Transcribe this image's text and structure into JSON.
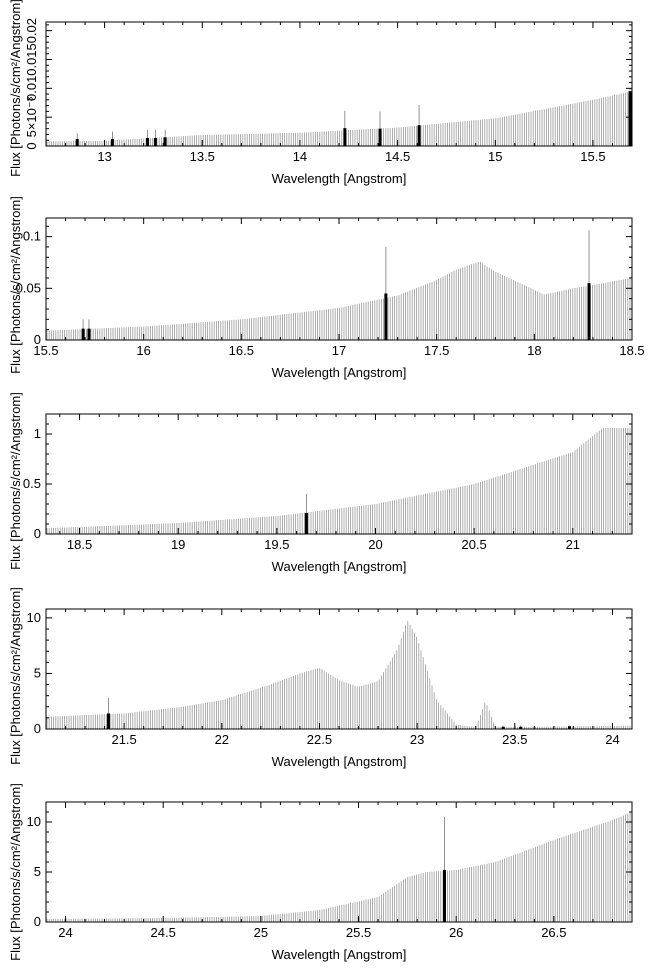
{
  "chart_data": [
    {
      "type": "bar",
      "xlabel": "Wavelength [Angstrom]",
      "ylabel": "Flux [Photons/s/cm²/Angstrom]",
      "xlim": [
        12.7,
        15.7
      ],
      "ylim": [
        0,
        0.0215
      ],
      "xticks": [
        13,
        13.5,
        14,
        14.5,
        15,
        15.5
      ],
      "xtick_labels": [
        "13",
        "13.5",
        "14",
        "14.5",
        "15",
        "15.5"
      ],
      "yticks": [
        0,
        0.005,
        0.01,
        0.015,
        0.02
      ],
      "ytick_labels": [
        "0",
        "5×10⁻³",
        "0.01",
        "0.015",
        "0.02"
      ],
      "curve": [
        [
          12.7,
          0.0008
        ],
        [
          13.0,
          0.0009
        ],
        [
          13.5,
          0.0019
        ],
        [
          14.0,
          0.0023
        ],
        [
          14.5,
          0.0032
        ],
        [
          15.0,
          0.0048
        ],
        [
          15.5,
          0.008
        ],
        [
          15.7,
          0.0095
        ]
      ],
      "highlights": [
        {
          "x": 12.86,
          "y": 0.0012,
          "err": 0.0022
        },
        {
          "x": 13.04,
          "y": 0.0012,
          "err": 0.0025
        },
        {
          "x": 13.22,
          "y": 0.0014,
          "err": 0.0028
        },
        {
          "x": 13.26,
          "y": 0.0014,
          "err": 0.0028
        },
        {
          "x": 13.31,
          "y": 0.0015,
          "err": 0.0028
        },
        {
          "x": 14.23,
          "y": 0.0031,
          "err": 0.0061
        },
        {
          "x": 14.41,
          "y": 0.003,
          "err": 0.006
        },
        {
          "x": 14.61,
          "y": 0.0036,
          "err": 0.0071
        },
        {
          "x": 15.69,
          "y": 0.0095,
          "err": 0.01
        }
      ]
    },
    {
      "type": "bar",
      "xlabel": "Wavelength [Angstrom]",
      "ylabel": "Flux [Photons/s/cm²/Angstrom]",
      "xlim": [
        15.5,
        18.5
      ],
      "ylim": [
        0,
        0.118
      ],
      "xticks": [
        15.5,
        16,
        16.5,
        17,
        17.5,
        18,
        18.5
      ],
      "xtick_labels": [
        "15.5",
        "16",
        "16.5",
        "17",
        "17.5",
        "18",
        "18.5"
      ],
      "yticks": [
        0,
        0.05,
        0.1
      ],
      "ytick_labels": [
        "0",
        "0.05",
        "0.1"
      ],
      "curve": [
        [
          15.5,
          0.009
        ],
        [
          16.0,
          0.013
        ],
        [
          16.5,
          0.02
        ],
        [
          17.0,
          0.031
        ],
        [
          17.3,
          0.043
        ],
        [
          17.5,
          0.058
        ],
        [
          17.6,
          0.068
        ],
        [
          17.72,
          0.076
        ],
        [
          17.8,
          0.066
        ],
        [
          17.95,
          0.053
        ],
        [
          18.05,
          0.044
        ],
        [
          18.2,
          0.05
        ],
        [
          18.5,
          0.06
        ]
      ],
      "highlights": [
        {
          "x": 15.69,
          "y": 0.011,
          "err": 0.02
        },
        {
          "x": 15.72,
          "y": 0.011,
          "err": 0.02
        },
        {
          "x": 17.24,
          "y": 0.045,
          "err": 0.09
        },
        {
          "x": 18.28,
          "y": 0.055,
          "err": 0.106
        }
      ]
    },
    {
      "type": "bar",
      "xlabel": "Wavelength [Angstrom]",
      "ylabel": "Flux [Photons/s/cm²/Angstrom]",
      "xlim": [
        18.33,
        21.3
      ],
      "ylim": [
        0,
        1.2
      ],
      "xticks": [
        18.5,
        19,
        19.5,
        20,
        20.5,
        21
      ],
      "xtick_labels": [
        "18.5",
        "19",
        "19.5",
        "20",
        "20.5",
        "21"
      ],
      "yticks": [
        0,
        0.5,
        1
      ],
      "ytick_labels": [
        "0",
        "0.5",
        "1"
      ],
      "curve": [
        [
          18.33,
          0.06
        ],
        [
          18.5,
          0.07
        ],
        [
          19.0,
          0.11
        ],
        [
          19.5,
          0.18
        ],
        [
          20.0,
          0.3
        ],
        [
          20.5,
          0.5
        ],
        [
          21.0,
          0.82
        ],
        [
          21.15,
          1.06
        ],
        [
          21.3,
          1.06
        ]
      ],
      "highlights": [
        {
          "x": 19.65,
          "y": 0.21,
          "err": 0.4
        }
      ]
    },
    {
      "type": "bar",
      "xlabel": "Wavelength [Angstrom]",
      "ylabel": "Flux [Photons/s/cm²/Angstrom]",
      "xlim": [
        21.1,
        24.1
      ],
      "ylim": [
        0,
        10.8
      ],
      "xticks": [
        21.5,
        22,
        22.5,
        23,
        23.5,
        24
      ],
      "xtick_labels": [
        "21.5",
        "22",
        "22.5",
        "23",
        "23.5",
        "24"
      ],
      "yticks": [
        0,
        5,
        10
      ],
      "ytick_labels": [
        "0",
        "5",
        "10"
      ],
      "curve": [
        [
          21.1,
          1.1
        ],
        [
          21.5,
          1.4
        ],
        [
          21.8,
          2.0
        ],
        [
          22.0,
          2.6
        ],
        [
          22.25,
          4.0
        ],
        [
          22.4,
          5.0
        ],
        [
          22.5,
          5.5
        ],
        [
          22.6,
          4.4
        ],
        [
          22.7,
          3.8
        ],
        [
          22.8,
          4.3
        ],
        [
          22.9,
          7.2
        ],
        [
          22.95,
          9.8
        ],
        [
          23.0,
          8.2
        ],
        [
          23.1,
          2.6
        ],
        [
          23.2,
          0.4
        ],
        [
          23.3,
          0.15
        ],
        [
          23.35,
          2.5
        ],
        [
          23.4,
          0.2
        ],
        [
          23.6,
          0.2
        ],
        [
          24.1,
          0.3
        ]
      ],
      "highlights": [
        {
          "x": 21.42,
          "y": 1.4,
          "err": 2.8
        },
        {
          "x": 23.44,
          "y": 0.2,
          "err": 0.3
        },
        {
          "x": 23.53,
          "y": 0.2,
          "err": 0.3
        },
        {
          "x": 23.78,
          "y": 0.25,
          "err": 0.3
        }
      ]
    },
    {
      "type": "bar",
      "xlabel": "Wavelength [Angstrom]",
      "ylabel": "Flux [Photons/s/cm²/Angstrom]",
      "xlim": [
        23.9,
        26.9
      ],
      "ylim": [
        0,
        12
      ],
      "xticks": [
        24,
        24.5,
        25,
        25.5,
        26,
        26.5
      ],
      "xtick_labels": [
        "24",
        "24.5",
        "25",
        "25.5",
        "26",
        "26.5"
      ],
      "yticks": [
        0,
        5,
        10
      ],
      "ytick_labels": [
        "0",
        "5",
        "10"
      ],
      "curve": [
        [
          23.9,
          0.3
        ],
        [
          24.5,
          0.4
        ],
        [
          25.0,
          0.6
        ],
        [
          25.3,
          1.2
        ],
        [
          25.6,
          2.5
        ],
        [
          25.75,
          4.5
        ],
        [
          25.85,
          5.0
        ],
        [
          26.0,
          5.2
        ],
        [
          26.2,
          6.0
        ],
        [
          26.5,
          8.2
        ],
        [
          26.8,
          10.2
        ],
        [
          26.9,
          11.0
        ]
      ],
      "highlights": [
        {
          "x": 25.94,
          "y": 5.2,
          "err": 10.5
        }
      ]
    }
  ]
}
